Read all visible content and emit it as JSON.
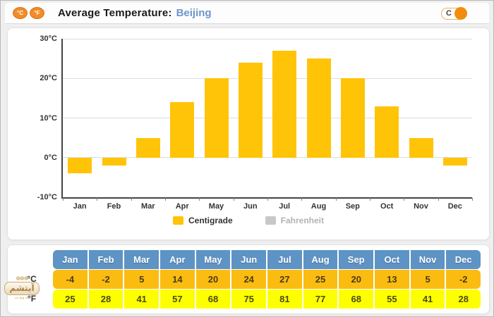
{
  "header": {
    "icon_c": "°C",
    "icon_f": "°F",
    "title": "Average Temperature:",
    "city": "Beijing",
    "toggle_label": "C"
  },
  "chart_data": {
    "type": "bar",
    "title": "Average Temperature: Beijing",
    "categories": [
      "Jan",
      "Feb",
      "Mar",
      "Apr",
      "May",
      "Jun",
      "Jul",
      "Aug",
      "Sep",
      "Oct",
      "Nov",
      "Dec"
    ],
    "series": [
      {
        "name": "Centigrade",
        "unit": "°C",
        "color": "#ffc408",
        "visible": true,
        "values": [
          -4,
          -2,
          5,
          14,
          20,
          24,
          27,
          25,
          20,
          13,
          5,
          -2
        ]
      },
      {
        "name": "Fahrenheit",
        "unit": "°F",
        "color": "#c8c8c8",
        "visible": false,
        "values": [
          25,
          28,
          41,
          57,
          68,
          75,
          81,
          77,
          68,
          55,
          41,
          28
        ]
      }
    ],
    "ylim": [
      -10,
      30
    ],
    "yticks": [
      {
        "value": 30,
        "label": "30°C"
      },
      {
        "value": 20,
        "label": "20°C"
      },
      {
        "value": 10,
        "label": "10°C"
      },
      {
        "value": 0,
        "label": "0°C"
      },
      {
        "value": -10,
        "label": "-10°C"
      }
    ],
    "grid": true,
    "legend_position": "bottom"
  },
  "table": {
    "row_labels": [
      "°C",
      "°F"
    ],
    "columns": [
      "Jan",
      "Feb",
      "Mar",
      "Apr",
      "May",
      "Jun",
      "Jul",
      "Aug",
      "Sep",
      "Oct",
      "Nov",
      "Dec"
    ],
    "rows": [
      [
        -4,
        -2,
        5,
        14,
        20,
        24,
        27,
        25,
        20,
        13,
        5,
        -2
      ],
      [
        25,
        28,
        41,
        57,
        68,
        75,
        81,
        77,
        68,
        55,
        41,
        28
      ]
    ]
  },
  "watermark": {
    "text": "آیتشم",
    "ornament_top": "❁❁❁",
    "ornament_bottom": "∽∾∽"
  },
  "colors": {
    "bar": "#ffc408",
    "legend_disabled": "#c8c8c8",
    "table_header": "#5e93c5",
    "table_celsius": "#fbbc12",
    "table_fahrenheit": "#fdff00",
    "accent_orange": "#f28c0f"
  }
}
